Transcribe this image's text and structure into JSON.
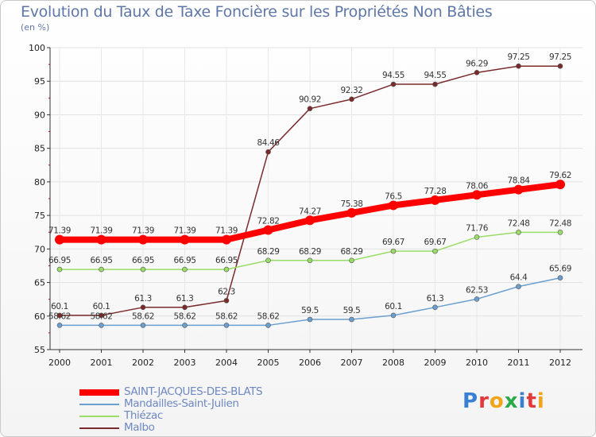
{
  "chart_data": {
    "type": "line",
    "title": "Evolution du Taux de Taxe Foncière sur les Propriétés Non Bâties",
    "unit_label": "(en %)",
    "x": [
      "2000",
      "2001",
      "2002",
      "2003",
      "2004",
      "2005",
      "2006",
      "2007",
      "2008",
      "2009",
      "2010",
      "2011",
      "2012"
    ],
    "ylim": [
      55,
      100
    ],
    "yticks": [
      55,
      60,
      65,
      70,
      75,
      80,
      85,
      90,
      95,
      100
    ],
    "grid": true,
    "legend_placement": "bottom-left",
    "series": [
      {
        "name": "SAINT-JACQUES-DES-BLATS",
        "color": "#ff0000",
        "width": 8,
        "marker": 6,
        "values": [
          71.39,
          71.39,
          71.39,
          71.39,
          71.39,
          72.82,
          74.27,
          75.38,
          76.5,
          77.28,
          78.06,
          78.84,
          79.62
        ],
        "labels": [
          "71.39",
          "71.39",
          "71.39",
          "71.39",
          "71.39",
          "72.82",
          "74.27",
          "75.38",
          "76.5",
          "77.28",
          "78.06",
          "78.84",
          "79.62"
        ]
      },
      {
        "name": "Mandailles-Saint-Julien",
        "color": "#6a9fd0",
        "width": 1.5,
        "marker": 3,
        "values": [
          58.62,
          58.62,
          58.62,
          58.62,
          58.62,
          58.62,
          59.5,
          59.5,
          60.1,
          61.3,
          62.53,
          64.4,
          65.69
        ],
        "labels": [
          "58.62",
          "58.62",
          "58.62",
          "58.62",
          "58.62",
          "58.62",
          "59.5",
          "59.5",
          "60.1",
          "61.3",
          "62.53",
          "64.4",
          "65.69"
        ]
      },
      {
        "name": "Thiézac",
        "color": "#99dd66",
        "width": 1.5,
        "marker": 3,
        "values": [
          66.95,
          66.95,
          66.95,
          66.95,
          66.95,
          68.29,
          68.29,
          68.29,
          69.67,
          69.67,
          71.76,
          72.48,
          72.48
        ],
        "labels": [
          "66.95",
          "66.95",
          "66.95",
          "66.95",
          "66.95",
          "68.29",
          "68.29",
          "68.29",
          "69.67",
          "69.67",
          "71.76",
          "72.48",
          "72.48"
        ]
      },
      {
        "name": "Malbo",
        "color": "#7a2a2a",
        "width": 1.5,
        "marker": 3,
        "values": [
          60.1,
          60.1,
          61.3,
          61.3,
          62.3,
          84.46,
          90.92,
          92.32,
          94.55,
          94.55,
          96.29,
          97.25,
          97.25
        ],
        "labels": [
          "60.1",
          "60.1",
          "61.3",
          "61.3",
          "62.3",
          "84.46",
          "90.92",
          "92.32",
          "94.55",
          "94.55",
          "96.29",
          "97.25",
          "97.25"
        ]
      }
    ]
  },
  "logo": {
    "text": "Proxiti"
  }
}
